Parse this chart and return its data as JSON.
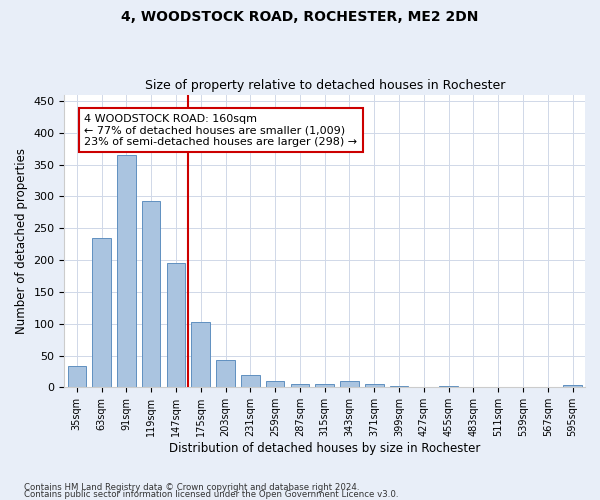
{
  "title1": "4, WOODSTOCK ROAD, ROCHESTER, ME2 2DN",
  "title2": "Size of property relative to detached houses in Rochester",
  "xlabel": "Distribution of detached houses by size in Rochester",
  "ylabel": "Number of detached properties",
  "categories": [
    "35sqm",
    "63sqm",
    "91sqm",
    "119sqm",
    "147sqm",
    "175sqm",
    "203sqm",
    "231sqm",
    "259sqm",
    "287sqm",
    "315sqm",
    "343sqm",
    "371sqm",
    "399sqm",
    "427sqm",
    "455sqm",
    "483sqm",
    "511sqm",
    "539sqm",
    "567sqm",
    "595sqm"
  ],
  "values": [
    33,
    234,
    365,
    293,
    196,
    102,
    43,
    19,
    10,
    5,
    5,
    10,
    5,
    2,
    0,
    2,
    0,
    0,
    0,
    0,
    3
  ],
  "bar_color": "#aac4e0",
  "bar_edge_color": "#6090c0",
  "vline_x": 4.5,
  "vline_color": "#cc0000",
  "annotation_text": "4 WOODSTOCK ROAD: 160sqm\n← 77% of detached houses are smaller (1,009)\n23% of semi-detached houses are larger (298) →",
  "annotation_box_color": "#ffffff",
  "annotation_box_edge": "#cc0000",
  "ylim": [
    0,
    460
  ],
  "yticks": [
    0,
    50,
    100,
    150,
    200,
    250,
    300,
    350,
    400,
    450
  ],
  "footnote1": "Contains HM Land Registry data © Crown copyright and database right 2024.",
  "footnote2": "Contains public sector information licensed under the Open Government Licence v3.0.",
  "bg_color": "#e8eef8",
  "plot_bg_color": "#ffffff",
  "bar_width": 0.75
}
